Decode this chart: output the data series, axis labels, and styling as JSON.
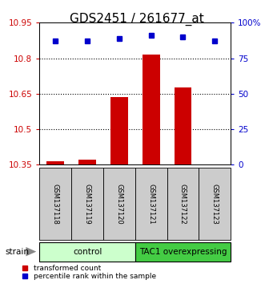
{
  "title": "GDS2451 / 261677_at",
  "samples": [
    "GSM137118",
    "GSM137119",
    "GSM137120",
    "GSM137121",
    "GSM137122",
    "GSM137123"
  ],
  "red_values": [
    10.363,
    10.37,
    10.635,
    10.815,
    10.675,
    10.352
  ],
  "blue_values": [
    87,
    87,
    89,
    91,
    90,
    87
  ],
  "ylim_left": [
    10.35,
    10.95
  ],
  "ylim_right": [
    0,
    100
  ],
  "yticks_left": [
    10.35,
    10.5,
    10.65,
    10.8,
    10.95
  ],
  "yticks_right": [
    0,
    25,
    50,
    75,
    100
  ],
  "red_color": "#cc0000",
  "blue_color": "#0000cc",
  "bar_bottom": 10.35,
  "control_color": "#ccffcc",
  "tac1_color": "#44cc44",
  "sample_box_color": "#cccccc",
  "group_label_control": "control",
  "group_label_tac1": "TAC1 overexpressing",
  "strain_label": "strain",
  "legend_red": "transformed count",
  "legend_blue": "percentile rank within the sample",
  "title_fontsize": 11,
  "tick_fontsize": 7.5,
  "gridline_ticks": [
    10.5,
    10.65,
    10.8
  ],
  "control_indices": [
    0,
    1,
    2
  ],
  "tac1_indices": [
    3,
    4,
    5
  ],
  "figsize": [
    3.41,
    3.54
  ],
  "dpi": 100
}
